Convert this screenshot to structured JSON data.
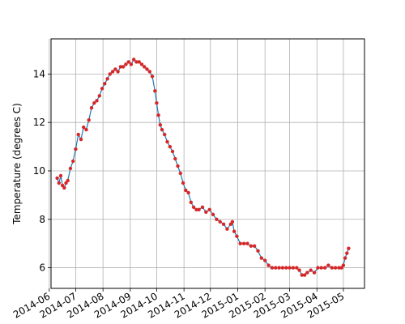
{
  "chart_data": {
    "type": "line",
    "title": "",
    "xlabel": "",
    "ylabel": "Temperature (degrees C)",
    "x_type": "date",
    "xlim": [
      "2014-06-03",
      "2015-05-25"
    ],
    "ylim": [
      5.15,
      15.45
    ],
    "grid": true,
    "x_ticks": [
      "2014-06",
      "2014-07",
      "2014-08",
      "2014-09",
      "2014-10",
      "2014-11",
      "2014-12",
      "2015-01",
      "2015-02",
      "2015-03",
      "2015-04",
      "2015-05"
    ],
    "y_ticks": [
      6,
      8,
      10,
      12,
      14
    ],
    "series": [
      {
        "color": "#1f77b4",
        "marker_color": "#d62728",
        "x": [
          "2014-06-10",
          "2014-06-12",
          "2014-06-14",
          "2014-06-16",
          "2014-06-18",
          "2014-06-20",
          "2014-06-22",
          "2014-06-25",
          "2014-06-28",
          "2014-07-01",
          "2014-07-04",
          "2014-07-07",
          "2014-07-10",
          "2014-07-13",
          "2014-07-16",
          "2014-07-19",
          "2014-07-22",
          "2014-07-25",
          "2014-07-28",
          "2014-07-31",
          "2014-08-03",
          "2014-08-06",
          "2014-08-09",
          "2014-08-12",
          "2014-08-15",
          "2014-08-18",
          "2014-08-21",
          "2014-08-24",
          "2014-08-27",
          "2014-08-30",
          "2014-09-02",
          "2014-09-05",
          "2014-09-08",
          "2014-09-11",
          "2014-09-14",
          "2014-09-17",
          "2014-09-20",
          "2014-09-23",
          "2014-09-26",
          "2014-09-29",
          "2014-10-01",
          "2014-10-03",
          "2014-10-05",
          "2014-10-07",
          "2014-10-10",
          "2014-10-13",
          "2014-10-16",
          "2014-10-19",
          "2014-10-22",
          "2014-10-25",
          "2014-10-28",
          "2014-10-31",
          "2014-11-03",
          "2014-11-06",
          "2014-11-09",
          "2014-11-12",
          "2014-11-15",
          "2014-11-18",
          "2014-11-22",
          "2014-11-26",
          "2014-11-30",
          "2014-12-04",
          "2014-12-08",
          "2014-12-12",
          "2014-12-16",
          "2014-12-20",
          "2014-12-24",
          "2014-12-26",
          "2014-12-28",
          "2014-12-31",
          "2015-01-04",
          "2015-01-08",
          "2015-01-12",
          "2015-01-16",
          "2015-01-20",
          "2015-01-24",
          "2015-01-28",
          "2015-02-01",
          "2015-02-05",
          "2015-02-09",
          "2015-02-13",
          "2015-02-17",
          "2015-02-21",
          "2015-02-25",
          "2015-03-01",
          "2015-03-05",
          "2015-03-09",
          "2015-03-12",
          "2015-03-15",
          "2015-03-18",
          "2015-03-21",
          "2015-03-25",
          "2015-03-29",
          "2015-04-02",
          "2015-04-06",
          "2015-04-10",
          "2015-04-14",
          "2015-04-18",
          "2015-04-22",
          "2015-04-26",
          "2015-04-29",
          "2015-05-01",
          "2015-05-03",
          "2015-05-05",
          "2015-05-07"
        ],
        "y": [
          9.7,
          9.5,
          9.8,
          9.4,
          9.3,
          9.5,
          9.6,
          10.1,
          10.4,
          10.9,
          11.5,
          11.3,
          11.8,
          11.7,
          12.1,
          12.6,
          12.8,
          12.9,
          13.1,
          13.4,
          13.6,
          13.8,
          14.0,
          14.1,
          14.2,
          14.1,
          14.3,
          14.3,
          14.4,
          14.5,
          14.4,
          14.6,
          14.5,
          14.5,
          14.4,
          14.3,
          14.2,
          14.1,
          13.9,
          13.3,
          12.8,
          12.3,
          11.9,
          11.7,
          11.5,
          11.2,
          11.0,
          10.8,
          10.5,
          10.2,
          9.9,
          9.5,
          9.2,
          9.1,
          8.7,
          8.5,
          8.4,
          8.4,
          8.5,
          8.3,
          8.4,
          8.2,
          8.0,
          7.9,
          7.8,
          7.6,
          7.8,
          7.9,
          7.5,
          7.3,
          7.0,
          7.0,
          7.0,
          6.9,
          6.9,
          6.7,
          6.4,
          6.3,
          6.1,
          6.0,
          6.0,
          6.0,
          6.0,
          6.0,
          6.0,
          6.0,
          6.0,
          5.9,
          5.7,
          5.7,
          5.8,
          5.9,
          5.8,
          6.0,
          6.0,
          6.0,
          6.1,
          6.0,
          6.0,
          6.0,
          6.0,
          6.1,
          6.4,
          6.6,
          6.8
        ]
      }
    ]
  }
}
